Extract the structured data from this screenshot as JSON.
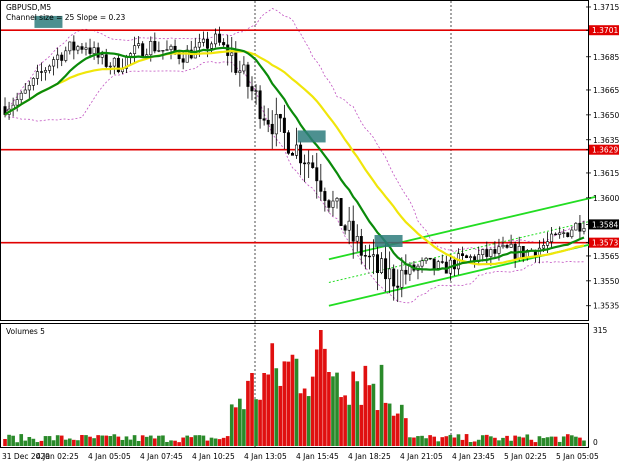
{
  "header": {
    "symbol": "GBPUSD,M5",
    "channel_info": "Channel size = 25 Slope = 0.23"
  },
  "volume_panel": {
    "label": "Volumes 5",
    "scale_top": "315",
    "scale_zero": "0"
  },
  "colors": {
    "bull_candle": "#000000",
    "bear_candle": "#000000",
    "ma_fast": "#0a8a0a",
    "ma_slow": "#f0e60a",
    "bollinger": "#c050c0",
    "level_line": "#e00000",
    "level_tag_bg": "#e00000",
    "last_price_tag_bg": "#000000",
    "channel": "#22dd22",
    "volume_up": "#2a8a2a",
    "volume_down": "#e01010",
    "marker": "#2e7d7d",
    "grid": "#000000"
  },
  "chart_data": {
    "type": "candlestick",
    "symbol": "GBPUSD",
    "timeframe": "M5",
    "y_range": [
      1.3527,
      1.3718
    ],
    "y_ticks": [
      "1.3715",
      "1.3701",
      "1.3685",
      "1.3665",
      "1.3650",
      "1.3635",
      "1.3629",
      "1.3615",
      "1.3600",
      "1.3584",
      "1.3573",
      "1.3565",
      "1.3550",
      "1.3535"
    ],
    "x_ticks": [
      "31 Dec 2020",
      "4 Jan 02:25",
      "4 Jan 05:05",
      "4 Jan 07:45",
      "4 Jan 10:25",
      "4 Jan 13:05",
      "4 Jan 15:45",
      "4 Jan 18:25",
      "4 Jan 21:05",
      "4 Jan 23:45",
      "5 Jan 02:25",
      "5 Jan 05:05"
    ],
    "levels": [
      {
        "price": 1.3701,
        "label": "1.3701"
      },
      {
        "price": 1.3629,
        "label": "1.3629"
      },
      {
        "price": 1.3573,
        "label": "1.3573"
      }
    ],
    "last_price": {
      "price": 1.3584,
      "label": "1.3584"
    },
    "path_points": [
      [
        0,
        1.3655
      ],
      [
        4,
        1.366
      ],
      [
        8,
        1.3672
      ],
      [
        12,
        1.3684
      ],
      [
        16,
        1.369
      ],
      [
        20,
        1.3692
      ],
      [
        24,
        1.3682
      ],
      [
        28,
        1.368
      ],
      [
        32,
        1.3688
      ],
      [
        36,
        1.3692
      ],
      [
        40,
        1.3688
      ],
      [
        44,
        1.3686
      ],
      [
        48,
        1.369
      ],
      [
        52,
        1.3695
      ],
      [
        56,
        1.3685
      ],
      [
        60,
        1.3668
      ],
      [
        64,
        1.3652
      ],
      [
        68,
        1.364
      ],
      [
        72,
        1.363
      ],
      [
        76,
        1.362
      ],
      [
        80,
        1.36
      ],
      [
        84,
        1.3582
      ],
      [
        88,
        1.3568
      ],
      [
        92,
        1.3556
      ],
      [
        96,
        1.3552
      ],
      [
        100,
        1.3556
      ],
      [
        104,
        1.356
      ],
      [
        108,
        1.3557
      ],
      [
        112,
        1.3562
      ],
      [
        116,
        1.3564
      ],
      [
        120,
        1.3566
      ],
      [
        124,
        1.3568
      ],
      [
        128,
        1.3567
      ],
      [
        132,
        1.357
      ],
      [
        136,
        1.3575
      ],
      [
        140,
        1.3582
      ],
      [
        143,
        1.3586
      ]
    ],
    "candle_count": 144,
    "regression_channel": {
      "x_start": 80,
      "x_end": 143,
      "mid_start": 1.3549,
      "mid_end": 1.3585,
      "width": 0.0014
    },
    "sell_markers": [
      {
        "x": 9,
        "price": 1.3706
      },
      {
        "x": 93,
        "price": 1.3574
      }
    ],
    "buy_markers": [
      {
        "x": 74,
        "price": 1.3637
      }
    ],
    "volume_max": 315
  }
}
